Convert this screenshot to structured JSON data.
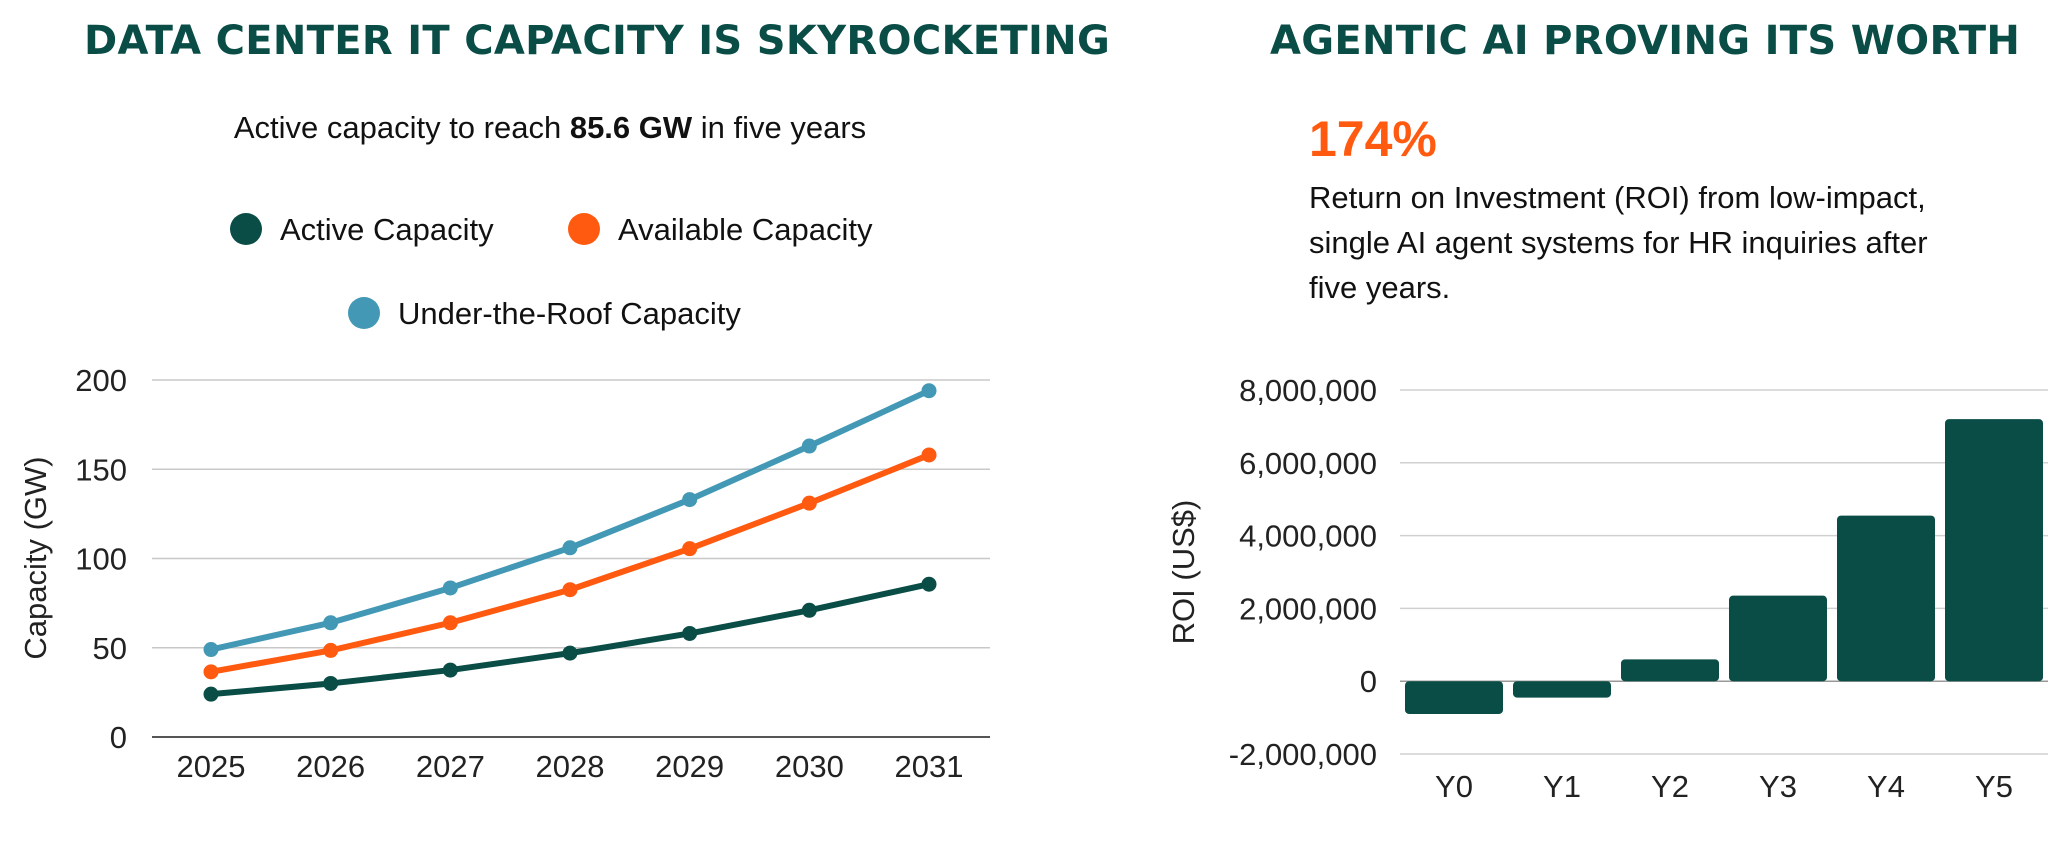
{
  "left_panel": {
    "title": "DATA CENTER IT CAPACITY IS SKYROCKETING",
    "subtitle_pre": "Active capacity to reach ",
    "subtitle_bold": "85.6 GW",
    "subtitle_post": " in five years"
  },
  "right_panel": {
    "title": "AGENTIC AI PROVING ITS WORTH",
    "big_number": "174%",
    "description": "Return on Investment (ROI) from low-impact, single AI agent systems for HR inquiries after five years."
  },
  "chart_data": [
    {
      "type": "line",
      "title": "DATA CENTER IT CAPACITY IS SKYROCKETING",
      "xlabel": "",
      "ylabel": "Capacity (GW)",
      "x": [
        "2025",
        "2026",
        "2027",
        "2028",
        "2029",
        "2030",
        "2031"
      ],
      "ylim": [
        0,
        200
      ],
      "yticks": [
        0,
        50,
        100,
        150,
        200
      ],
      "grid": true,
      "series": [
        {
          "name": "Active Capacity",
          "color": "#0a4d46",
          "values": [
            24,
            30,
            37.5,
            47,
            58,
            71,
            85.6
          ]
        },
        {
          "name": "Available Capacity",
          "color": "#ff5a0f",
          "values": [
            36.5,
            48.5,
            64,
            82.5,
            105.5,
            131,
            158
          ]
        },
        {
          "name": "Under-the-Roof Capacity",
          "color": "#4298b5",
          "values": [
            49,
            64,
            83.5,
            106,
            133,
            163,
            194
          ]
        }
      ]
    },
    {
      "type": "bar",
      "title": "AGENTIC AI PROVING ITS WORTH",
      "xlabel": "",
      "ylabel": "ROI (US$)",
      "categories": [
        "Y0",
        "Y1",
        "Y2",
        "Y3",
        "Y4",
        "Y5"
      ],
      "values": [
        -900000,
        -450000,
        600000,
        2350000,
        4550000,
        7200000
      ],
      "ylim": [
        -2000000,
        8000000
      ],
      "yticks": [
        -2000000,
        0,
        2000000,
        4000000,
        6000000,
        8000000
      ],
      "ytick_labels": [
        "-2,000,000",
        "0",
        "2,000,000",
        "4,000,000",
        "6,000,000",
        "8,000,000"
      ],
      "color": "#0a4d46",
      "grid": true
    }
  ]
}
